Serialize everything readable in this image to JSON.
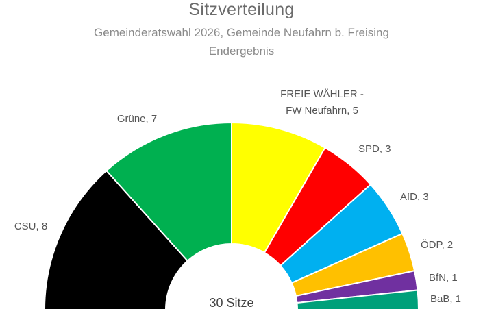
{
  "header": {
    "title": "Sitzverteilung",
    "subtitle_line1": "Gemeinderatswahl 2026, Gemeinde Neufahrn b. Freising",
    "subtitle_line2": "Endergebnis"
  },
  "total_label": "30 Sitze",
  "chart_data": {
    "type": "pie",
    "variant": "semicircle-parliament",
    "total_seats": 30,
    "slices": [
      {
        "party": "CSU",
        "label": "CSU, 8",
        "seats": 8,
        "color": "#000000"
      },
      {
        "party": "Grüne",
        "label": "Grüne, 7",
        "seats": 7,
        "color": "#00b050"
      },
      {
        "party": "FREIE WÄHLER - FW Neufahrn",
        "label_lines": [
          "FREIE WÄHLER -",
          "FW Neufahrn, 5"
        ],
        "seats": 5,
        "color": "#ffff00"
      },
      {
        "party": "SPD",
        "label": "SPD, 3",
        "seats": 3,
        "color": "#ff0000"
      },
      {
        "party": "AfD",
        "label": "AfD, 3",
        "seats": 3,
        "color": "#00b0f0"
      },
      {
        "party": "ÖDP",
        "label": "ÖDP, 2",
        "seats": 2,
        "color": "#ffc000"
      },
      {
        "party": "BfN",
        "label": "BfN, 1",
        "seats": 1,
        "color": "#7030a0"
      },
      {
        "party": "BaB",
        "label": "BaB, 1",
        "seats": 1,
        "color": "#00a07a"
      }
    ]
  }
}
